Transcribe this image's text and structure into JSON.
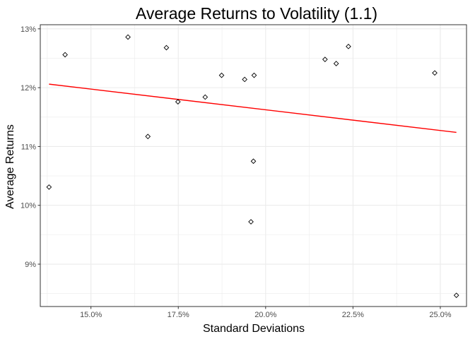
{
  "chart_data": {
    "type": "scatter",
    "title": "Average Returns to Volatility (1.1)",
    "xlabel": "Standard Deviations",
    "ylabel": "Average Returns",
    "xlim": [
      13.55,
      25.75
    ],
    "ylim": [
      8.28,
      13.07
    ],
    "x_ticks": [
      15.0,
      17.5,
      20.0,
      22.5,
      25.0
    ],
    "x_tick_labels": [
      "15.0%",
      "17.5%",
      "20.0%",
      "22.5%",
      "25.0%"
    ],
    "y_ticks": [
      9,
      10,
      11,
      12,
      13
    ],
    "y_tick_labels": [
      "9%",
      "10%",
      "11%",
      "12%",
      "13%"
    ],
    "grid": true,
    "points": [
      {
        "x": 13.8,
        "y": 10.31
      },
      {
        "x": 14.26,
        "y": 12.56
      },
      {
        "x": 16.06,
        "y": 12.86
      },
      {
        "x": 16.63,
        "y": 11.17
      },
      {
        "x": 17.16,
        "y": 12.68
      },
      {
        "x": 17.49,
        "y": 11.76
      },
      {
        "x": 18.27,
        "y": 11.84
      },
      {
        "x": 18.74,
        "y": 12.21
      },
      {
        "x": 19.4,
        "y": 12.14
      },
      {
        "x": 19.58,
        "y": 9.72
      },
      {
        "x": 19.65,
        "y": 10.75
      },
      {
        "x": 19.67,
        "y": 12.21
      },
      {
        "x": 21.7,
        "y": 12.48
      },
      {
        "x": 22.02,
        "y": 12.41
      },
      {
        "x": 22.37,
        "y": 12.7
      },
      {
        "x": 24.84,
        "y": 12.25
      },
      {
        "x": 25.46,
        "y": 8.47
      }
    ],
    "trend_line": {
      "x": [
        13.8,
        25.46
      ],
      "y": [
        12.06,
        11.24
      ],
      "color": "#ff0000"
    },
    "point_color": "#000000",
    "panel_border_color": "#333333",
    "grid_color": "#ebebeb"
  }
}
